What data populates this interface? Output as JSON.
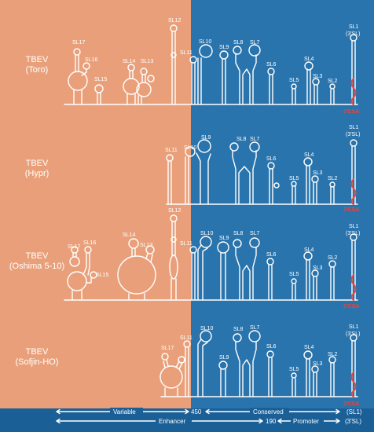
{
  "colors": {
    "left_bg": "#e9a07a",
    "right_bg": "#2a74ad",
    "bottom_bg": "#1b5f97",
    "structure": "#ffffff",
    "csa": "#e8453c"
  },
  "strains": [
    {
      "name": "TBEV",
      "subname": "(Toro)"
    },
    {
      "name": "TBEV",
      "subname": "(Hypr)"
    },
    {
      "name": "TBEV",
      "subname": "(Oshima 5-10)"
    },
    {
      "name": "TBEV",
      "subname": "(Sofjin-HO)"
    }
  ],
  "panel_labels": {
    "p1": [
      "SL17",
      "SL16",
      "SL15",
      "SL14",
      "SL13",
      "SL12",
      "SL11",
      "SL10",
      "SL9",
      "SL8",
      "SL7",
      "SL6",
      "SL5",
      "SL4",
      "SL3",
      "SL2",
      "SL1",
      "(3'SL)"
    ],
    "p2": [
      "SL11",
      "SL10",
      "SL9",
      "SL8",
      "SL7",
      "SL6",
      "SL5",
      "SL4",
      "SL3",
      "SL2",
      "SL1",
      "(3'SL)"
    ],
    "p3": [
      "SL17",
      "SL16",
      "SL15",
      "SL14",
      "SL13",
      "SL12",
      "SL11",
      "SL10",
      "SL9",
      "SL8",
      "SL7",
      "SL6",
      "SL5",
      "SL4",
      "SL3",
      "SL2",
      "SL1",
      "(3'SL)"
    ],
    "p4": [
      "SL17",
      "SL11",
      "SL10",
      "SL9",
      "SL8",
      "SL7",
      "SL6",
      "SL5",
      "SL4",
      "SL3",
      "SL2",
      "SL1",
      "(3'SL)"
    ]
  },
  "csa_label": "3'CSA",
  "scale": {
    "variable": "Variable",
    "conserved": "Conserved",
    "sl1": "(SL1)",
    "enhancer": "Enhancer",
    "promoter": "Promoter",
    "three_sl": "(3'SL)",
    "mark_450": "450",
    "mark_190": "190"
  }
}
